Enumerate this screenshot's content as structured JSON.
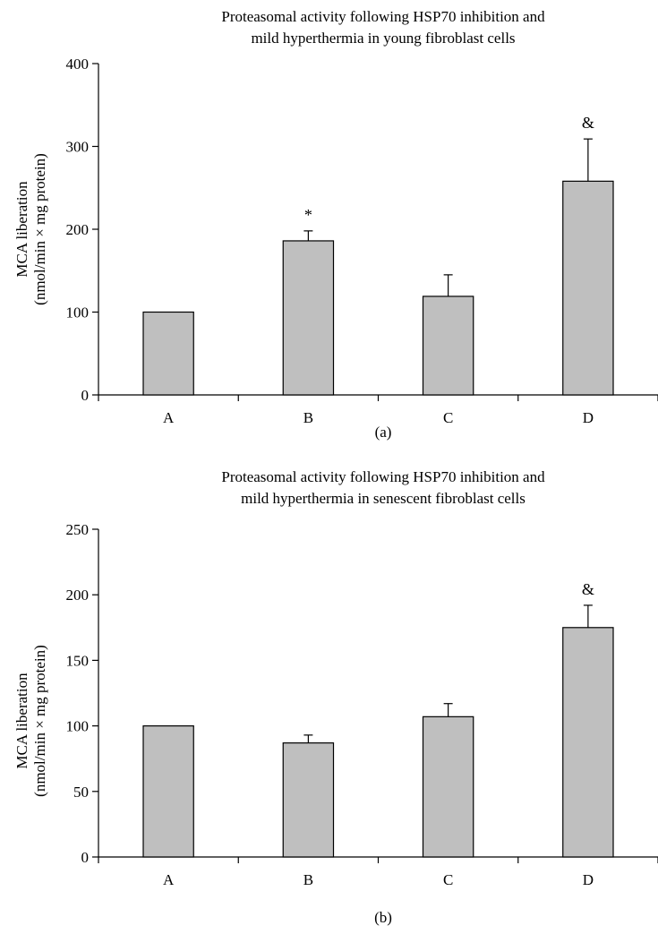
{
  "chart_data": [
    {
      "type": "bar",
      "title_line1": "Proteasomal activity following HSP70 inhibition and",
      "title_line2": "mild hyperthermia in young fibroblast cells",
      "ylabel_line1": "MCA liberation",
      "ylabel_line2": "(nmol/min × mg protein)",
      "xlabel": "",
      "categories": [
        "A",
        "B",
        "C",
        "D"
      ],
      "values": [
        100,
        186,
        119,
        258
      ],
      "errors": [
        0,
        12,
        26,
        51
      ],
      "annotations": [
        "",
        "*",
        "",
        "&"
      ],
      "ylim": [
        0,
        400
      ],
      "yticks": [
        0,
        100,
        200,
        300,
        400
      ],
      "panel_label": "(a)",
      "bar_color": "#bfbfbf",
      "grid": false
    },
    {
      "type": "bar",
      "title_line1": "Proteasomal activity following HSP70 inhibition and",
      "title_line2": "mild hyperthermia in senescent fibroblast cells",
      "ylabel_line1": "MCA liberation",
      "ylabel_line2": "(nmol/min × mg protein)",
      "xlabel": "",
      "categories": [
        "A",
        "B",
        "C",
        "D"
      ],
      "values": [
        100,
        87,
        107,
        175
      ],
      "errors": [
        0,
        6,
        10,
        17
      ],
      "annotations": [
        "",
        "",
        "",
        "&"
      ],
      "ylim": [
        0,
        250
      ],
      "yticks": [
        0,
        50,
        100,
        150,
        200,
        250
      ],
      "panel_label": "(b)",
      "bar_color": "#bfbfbf",
      "grid": false
    }
  ]
}
